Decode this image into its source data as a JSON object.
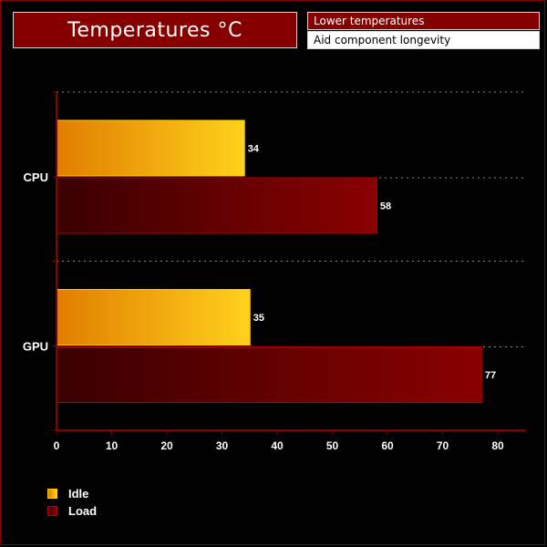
{
  "header": {
    "title": "Temperatures °C",
    "note_top": "Lower temperatures",
    "note_bottom": "Aid component longevity"
  },
  "chart_data": {
    "type": "bar",
    "orientation": "horizontal",
    "categories": [
      "CPU",
      "GPU"
    ],
    "series": [
      {
        "name": "Idle",
        "values": [
          34,
          35
        ]
      },
      {
        "name": "Load",
        "values": [
          58,
          77
        ]
      }
    ],
    "xticks": [
      0,
      10,
      20,
      30,
      40,
      50,
      60,
      70,
      80
    ],
    "xlim": [
      0,
      85
    ],
    "grid": true,
    "legend_position": "bottom-left",
    "colors": {
      "idle_start": "#e07e00",
      "idle_end": "#ffd21c",
      "load_start": "#3a0000",
      "load_end": "#8a0000",
      "axis": "#8a0000"
    }
  },
  "legend": {
    "items": [
      {
        "label": "Idle"
      },
      {
        "label": "Load"
      }
    ]
  }
}
